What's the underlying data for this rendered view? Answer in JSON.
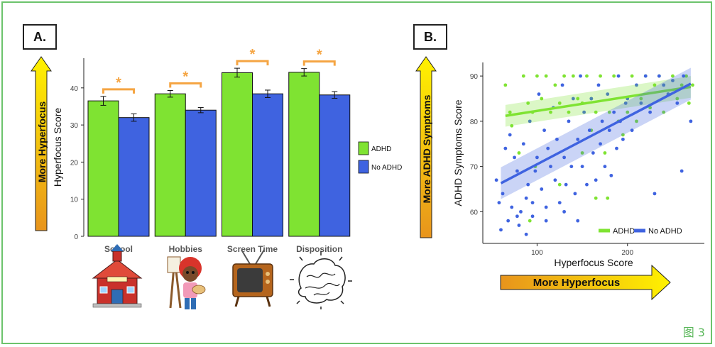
{
  "panelA": {
    "label": "A."
  },
  "panelB": {
    "label": "B."
  },
  "figure_number": "图 3",
  "arrows": {
    "a_vertical": "More Hyperfocus",
    "b_vertical": "More ADHD Symptoms",
    "b_horizontal": "More Hyperfocus"
  },
  "colors": {
    "adhd": "#7fe332",
    "no_adhd": "#3f63e0",
    "bracket": "#f5a543",
    "frame": "#6cc36c"
  },
  "chart_data": [
    {
      "type": "bar",
      "ylabel": "Hyperfocus Score",
      "xlabel": "",
      "ylim": [
        0,
        48
      ],
      "yticks": [
        0,
        10,
        20,
        30,
        40
      ],
      "categories": [
        "School",
        "Hobbies",
        "Screen Time",
        "Disposition"
      ],
      "series": [
        {
          "name": "ADHD",
          "values": [
            36.5,
            38.4,
            44.1,
            44.2
          ],
          "errors": [
            1.2,
            0.9,
            1.2,
            1.0
          ]
        },
        {
          "name": "No ADHD",
          "values": [
            32.0,
            34.0,
            38.4,
            38.1
          ],
          "errors": [
            1.0,
            0.7,
            1.0,
            0.9
          ]
        }
      ],
      "significance": [
        "*",
        "*",
        "*",
        "*"
      ],
      "legend": [
        "ADHD",
        "No ADHD"
      ],
      "legend_position": "right",
      "icons": [
        "school-icon",
        "painter-girl-icon",
        "tv-icon",
        "brain-icon"
      ]
    },
    {
      "type": "scatter",
      "xlabel": "Hyperfocus Score",
      "ylabel": "ADHD Symptoms Score",
      "xlim": [
        40,
        285
      ],
      "ylim": [
        53,
        93
      ],
      "xticks": [
        100,
        200
      ],
      "yticks": [
        60,
        70,
        80,
        90
      ],
      "legend": [
        "ADHD",
        "No ADHD"
      ],
      "legend_position": "bottom-right",
      "series": [
        {
          "name": "ADHD",
          "points": [
            [
              65,
              88
            ],
            [
              70,
              82
            ],
            [
              72,
              79
            ],
            [
              80,
              73
            ],
            [
              85,
              90
            ],
            [
              90,
              84
            ],
            [
              95,
              82
            ],
            [
              100,
              90
            ],
            [
              105,
              85
            ],
            [
              110,
              90
            ],
            [
              115,
              82
            ],
            [
              120,
              88
            ],
            [
              125,
              84
            ],
            [
              130,
              90
            ],
            [
              135,
              82
            ],
            [
              140,
              90
            ],
            [
              145,
              85
            ],
            [
              150,
              84
            ],
            [
              155,
              90
            ],
            [
              160,
              78
            ],
            [
              165,
              82
            ],
            [
              170,
              90
            ],
            [
              175,
              73
            ],
            [
              180,
              82
            ],
            [
              185,
              90
            ],
            [
              190,
              80
            ],
            [
              195,
              77
            ],
            [
              200,
              82
            ],
            [
              205,
              90
            ],
            [
              210,
              80
            ],
            [
              215,
              85
            ],
            [
              220,
              90
            ],
            [
              225,
              83
            ],
            [
              230,
              88
            ],
            [
              235,
              90
            ],
            [
              240,
              82
            ],
            [
              245,
              86
            ],
            [
              250,
              90
            ],
            [
              255,
              85
            ],
            [
              260,
              88
            ],
            [
              265,
              90
            ],
            [
              268,
              84
            ],
            [
              272,
              88
            ],
            [
              150,
              73
            ],
            [
              165,
              63
            ],
            [
              178,
              63
            ],
            [
              92,
              58
            ],
            [
              98,
              70
            ],
            [
              125,
              66
            ],
            [
              160,
              85
            ]
          ],
          "fit": {
            "x": [
              65,
              270
            ],
            "y": [
              81.2,
              87.6
            ],
            "ci": 1.5
          }
        },
        {
          "name": "No ADHD",
          "points": [
            [
              55,
              67
            ],
            [
              58,
              62
            ],
            [
              60,
              56
            ],
            [
              62,
              64
            ],
            [
              65,
              74
            ],
            [
              68,
              58
            ],
            [
              70,
              77
            ],
            [
              72,
              61
            ],
            [
              75,
              72
            ],
            [
              78,
              69
            ],
            [
              80,
              57
            ],
            [
              82,
              60
            ],
            [
              85,
              75
            ],
            [
              88,
              55
            ],
            [
              90,
              66
            ],
            [
              92,
              80
            ],
            [
              95,
              62
            ],
            [
              98,
              69
            ],
            [
              100,
              72
            ],
            [
              102,
              86
            ],
            [
              105,
              65
            ],
            [
              108,
              78
            ],
            [
              110,
              61
            ],
            [
              112,
              74
            ],
            [
              115,
              70
            ],
            [
              118,
              83
            ],
            [
              120,
              67
            ],
            [
              122,
              76
            ],
            [
              125,
              62
            ],
            [
              128,
              88
            ],
            [
              130,
              72
            ],
            [
              132,
              66
            ],
            [
              135,
              80
            ],
            [
              138,
              70
            ],
            [
              140,
              85
            ],
            [
              142,
              64
            ],
            [
              145,
              76
            ],
            [
              148,
              90
            ],
            [
              150,
              70
            ],
            [
              152,
              82
            ],
            [
              155,
              66
            ],
            [
              158,
              78
            ],
            [
              160,
              85
            ],
            [
              162,
              73
            ],
            [
              165,
              67
            ],
            [
              168,
              88
            ],
            [
              170,
              75
            ],
            [
              172,
              80
            ],
            [
              175,
              70
            ],
            [
              178,
              86
            ],
            [
              180,
              78
            ],
            [
              182,
              68
            ],
            [
              185,
              82
            ],
            [
              188,
              74
            ],
            [
              190,
              90
            ],
            [
              192,
              80
            ],
            [
              195,
              76
            ],
            [
              198,
              84
            ],
            [
              200,
              85
            ],
            [
              205,
              78
            ],
            [
              210,
              88
            ],
            [
              215,
              84
            ],
            [
              220,
              90
            ],
            [
              225,
              82
            ],
            [
              230,
              64
            ],
            [
              235,
              90
            ],
            [
              240,
              88
            ],
            [
              245,
              86
            ],
            [
              250,
              89
            ],
            [
              255,
              84
            ],
            [
              260,
              69
            ],
            [
              262,
              90
            ],
            [
              270,
              80
            ],
            [
              110,
              58
            ],
            [
              130,
              60
            ],
            [
              145,
              58
            ],
            [
              95,
              59
            ],
            [
              88,
              63
            ],
            [
              78,
              59
            ]
          ],
          "fit": {
            "x": [
              60,
              270
            ],
            "y": [
              66.3,
              88.3
            ],
            "ci": 2.2
          }
        }
      ]
    }
  ]
}
